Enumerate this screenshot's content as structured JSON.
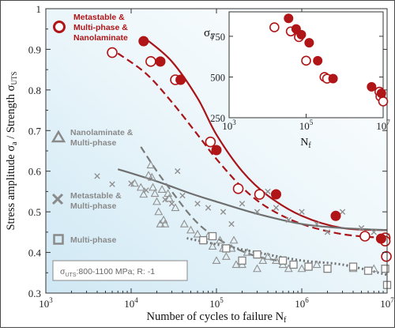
{
  "chart_data": [
    {
      "type": "scatter",
      "xscale": "log",
      "ylim": [
        0.3,
        1.0
      ],
      "xlim": [
        1000,
        10000000
      ],
      "ylabel": "Stress amplitude σa / Strength σUTS",
      "xlabel": "Number of cycles to failure Nf",
      "x_ticks": [
        "10^3",
        "10^4",
        "10^5",
        "10^6",
        "10^7"
      ],
      "y_ticks": [
        "0.3",
        "0.4",
        "0.5",
        "0.6",
        "0.7",
        "0.8",
        "0.9",
        "1"
      ],
      "colors": {
        "red": "#b01517",
        "gray": "#7c7c7c",
        "background_gradient": "#cfe8f4"
      },
      "legend": {
        "placement": "left",
        "entries": [
          {
            "marker": "circle",
            "label": "Metastable & Multi-phase & Nanolaminate",
            "color": "#b01517"
          },
          {
            "marker": "triangle",
            "label": "Nanolaminate & Multi-phase",
            "color": "#8a8a8a"
          },
          {
            "marker": "x",
            "label": "Metastable & Multi-phase",
            "color": "#8a8a8a"
          },
          {
            "marker": "square",
            "label": "Multi-phase",
            "color": "#8a8a8a"
          }
        ]
      },
      "annotation": "σUTS:800-1100 MPa; R: -1",
      "series": [
        {
          "marker": "circle-filled",
          "color": "#b01517",
          "points": [
            [
              14000,
              0.92
            ],
            [
              22000,
              0.87
            ],
            [
              38000,
              0.825
            ],
            [
              100000,
              0.652
            ],
            [
              500000,
              0.543
            ],
            [
              2500000,
              0.49
            ],
            [
              8500000,
              0.434
            ]
          ]
        },
        {
          "marker": "circle-open",
          "color": "#b01517",
          "points": [
            [
              6000,
              0.892
            ],
            [
              17000,
              0.87
            ],
            [
              33000,
              0.825
            ],
            [
              85000,
              0.672
            ],
            [
              180000,
              0.557
            ],
            [
              320000,
              0.543
            ],
            [
              5500000,
              0.44
            ],
            [
              9500000,
              0.436
            ],
            [
              9500000,
              0.428
            ],
            [
              9800000,
              0.39
            ]
          ]
        },
        {
          "marker": "triangle-open",
          "color": "#909090",
          "points": [
            [
              11000,
              0.57
            ],
            [
              13000,
              0.56
            ],
            [
              14000,
              0.543
            ],
            [
              16000,
              0.59
            ],
            [
              17000,
              0.615
            ],
            [
              17500,
              0.585
            ],
            [
              18000,
              0.56
            ],
            [
              19000,
              0.545
            ],
            [
              20000,
              0.525
            ],
            [
              21000,
              0.5
            ],
            [
              22000,
              0.47
            ],
            [
              23000,
              0.555
            ],
            [
              24000,
              0.48
            ],
            [
              25000,
              0.47
            ],
            [
              27000,
              0.545
            ],
            [
              28000,
              0.533
            ],
            [
              33000,
              0.51
            ],
            [
              42000,
              0.47
            ],
            [
              50000,
              0.455
            ],
            [
              60000,
              0.445
            ],
            [
              70000,
              0.43
            ],
            [
              80000,
              0.44
            ],
            [
              90000,
              0.415
            ],
            [
              100000,
              0.38
            ],
            [
              110000,
              0.43
            ],
            [
              120000,
              0.41
            ],
            [
              130000,
              0.39
            ],
            [
              150000,
              0.41
            ],
            [
              160000,
              0.43
            ],
            [
              170000,
              0.37
            ],
            [
              200000,
              0.37
            ],
            [
              230000,
              0.4
            ],
            [
              300000,
              0.36
            ],
            [
              350000,
              0.38
            ],
            [
              400000,
              0.39
            ],
            [
              500000,
              0.38
            ],
            [
              600000,
              0.37
            ],
            [
              700000,
              0.36
            ],
            [
              1000000,
              0.36
            ],
            [
              1500000,
              0.37
            ],
            [
              2000000,
              0.36
            ],
            [
              4000000,
              0.36
            ],
            [
              7000000,
              0.36
            ]
          ]
        },
        {
          "marker": "x",
          "color": "#909090",
          "points": [
            [
              4000,
              0.588
            ],
            [
              6000,
              0.568
            ],
            [
              10000,
              0.57
            ],
            [
              15000,
              0.553
            ],
            [
              25000,
              0.53
            ],
            [
              30000,
              0.52
            ],
            [
              35000,
              0.6
            ],
            [
              40000,
              0.54
            ],
            [
              60000,
              0.52
            ],
            [
              80000,
              0.51
            ],
            [
              120000,
              0.5
            ],
            [
              150000,
              0.47
            ],
            [
              200000,
              0.52
            ],
            [
              300000,
              0.5
            ],
            [
              400000,
              0.55
            ],
            [
              500000,
              0.51
            ],
            [
              700000,
              0.48
            ],
            [
              1000000,
              0.5
            ],
            [
              1500000,
              0.47
            ],
            [
              2000000,
              0.45
            ],
            [
              3000000,
              0.5
            ],
            [
              5000000,
              0.46
            ],
            [
              7000000,
              0.45
            ],
            [
              10000000,
              0.44
            ]
          ]
        },
        {
          "marker": "square-open",
          "color": "#808080",
          "points": [
            [
              70000,
              0.43
            ],
            [
              90000,
              0.44
            ],
            [
              130000,
              0.41
            ],
            [
              200000,
              0.38
            ],
            [
              300000,
              0.395
            ],
            [
              600000,
              0.38
            ],
            [
              800000,
              0.37
            ],
            [
              1200000,
              0.365
            ],
            [
              2000000,
              0.36
            ],
            [
              4000000,
              0.365
            ],
            [
              6000000,
              0.355
            ],
            [
              9500000,
              0.36
            ],
            [
              10000000,
              0.32
            ]
          ]
        }
      ],
      "fit_lines": [
        {
          "style": "solid",
          "color": "#a81418"
        },
        {
          "style": "dashed",
          "color": "#a81418"
        },
        {
          "style": "solid",
          "color": "#6f6f6f"
        },
        {
          "style": "dashed",
          "color": "#7a7a7a"
        },
        {
          "style": "dotted",
          "color": "#6f6f6f"
        }
      ]
    },
    {
      "type": "scatter",
      "xscale": "log",
      "title": "σa",
      "xlabel": "Nf",
      "xlim": [
        1000,
        10000000
      ],
      "ylim": [
        250,
        900
      ],
      "x_ticks": [
        "10^3",
        "10^5",
        "10^7"
      ],
      "y_ticks": [
        "250",
        "500",
        "750"
      ],
      "series": [
        {
          "marker": "circle-filled",
          "color": "#b01517",
          "points": [
            [
              35000,
              860
            ],
            [
              55000,
              795
            ],
            [
              75000,
              760
            ],
            [
              120000,
              710
            ],
            [
              200000,
              600
            ],
            [
              500000,
              490
            ],
            [
              5000000,
              440
            ],
            [
              9000000,
              400
            ]
          ]
        },
        {
          "marker": "circle-open",
          "color": "#b01517",
          "points": [
            [
              15000,
              805
            ],
            [
              40000,
              780
            ],
            [
              65000,
              745
            ],
            [
              100000,
              600
            ],
            [
              300000,
              500
            ],
            [
              350000,
              490
            ],
            [
              8000000,
              410
            ],
            [
              8500000,
              380
            ],
            [
              10000000,
              350
            ]
          ]
        }
      ]
    }
  ]
}
